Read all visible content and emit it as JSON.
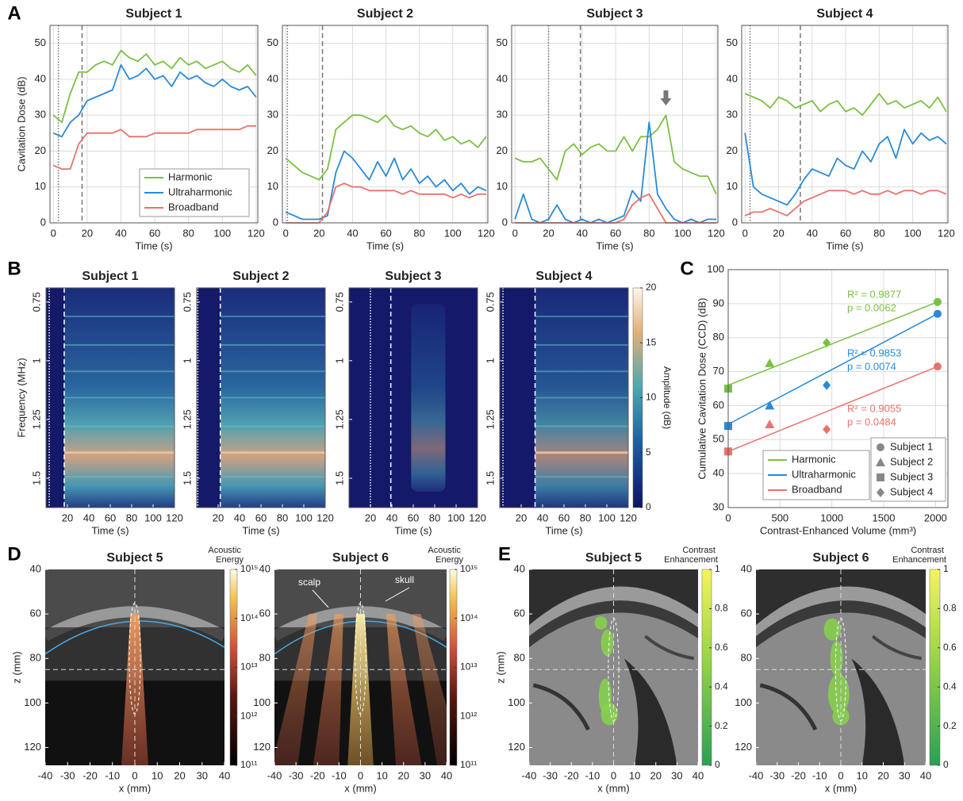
{
  "panel_labels": [
    "A",
    "B",
    "C",
    "D",
    "E"
  ],
  "chart_data": [
    {
      "type": "line",
      "title": "Subject 1",
      "xlabel": "Time (s)",
      "ylabel": "Cavitation Dose (dB)",
      "x": [
        0,
        5,
        10,
        15,
        20,
        25,
        30,
        35,
        40,
        45,
        50,
        55,
        60,
        65,
        70,
        75,
        80,
        85,
        90,
        95,
        100,
        105,
        110,
        115,
        120
      ],
      "xlim": [
        -2,
        121
      ],
      "xticks": [
        0,
        20,
        40,
        60,
        80,
        100,
        120
      ],
      "ylim": [
        0,
        55
      ],
      "yticks": [
        0,
        10,
        20,
        30,
        40,
        50
      ],
      "grid": true,
      "legend": "lower right",
      "vlines": [
        {
          "value": 3,
          "style": "dotted"
        },
        {
          "value": 17,
          "style": "dashed"
        }
      ],
      "series": [
        {
          "name": "Harmonic",
          "color": "#7ac143",
          "values": [
            30,
            28,
            36,
            42,
            42,
            44,
            45,
            44,
            48,
            46,
            45,
            47,
            44,
            45,
            43,
            46,
            44,
            45,
            43,
            44,
            45,
            43,
            42,
            44,
            41
          ]
        },
        {
          "name": "Ultraharmonic",
          "color": "#2a8ad6",
          "values": [
            25,
            24,
            28,
            30,
            34,
            35,
            36,
            37,
            44,
            40,
            41,
            43,
            40,
            41,
            38,
            42,
            40,
            41,
            39,
            38,
            40,
            38,
            37,
            38,
            35
          ]
        },
        {
          "name": "Broadband",
          "color": "#e8736c",
          "values": [
            16,
            15,
            15,
            22,
            25,
            25,
            25,
            25,
            26,
            24,
            24,
            24,
            25,
            25,
            25,
            25,
            25,
            26,
            26,
            26,
            26,
            26,
            26,
            27,
            27
          ]
        }
      ]
    },
    {
      "type": "line",
      "title": "Subject 2",
      "xlabel": "Time (s)",
      "x": [
        0,
        5,
        10,
        15,
        20,
        25,
        30,
        35,
        40,
        45,
        50,
        55,
        60,
        65,
        70,
        75,
        80,
        85,
        90,
        95,
        100,
        105,
        110,
        115,
        120
      ],
      "xlim": [
        -2,
        121
      ],
      "xticks": [
        0,
        20,
        40,
        60,
        80,
        100,
        120
      ],
      "ylim": [
        0,
        55
      ],
      "yticks": [
        0,
        10,
        20,
        30,
        40,
        50
      ],
      "grid": true,
      "vlines": [
        {
          "value": 1,
          "style": "dotted"
        },
        {
          "value": 22,
          "style": "dashed"
        }
      ],
      "series": [
        {
          "color": "#7ac143",
          "values": [
            18,
            16,
            14,
            13,
            12,
            15,
            26,
            28,
            30,
            30,
            29,
            28,
            30,
            27,
            26,
            27,
            25,
            24,
            26,
            23,
            24,
            22,
            23,
            21,
            24
          ]
        },
        {
          "color": "#2a8ad6",
          "values": [
            3,
            2,
            1,
            1,
            1,
            2,
            14,
            20,
            18,
            15,
            12,
            17,
            13,
            18,
            12,
            15,
            11,
            13,
            10,
            12,
            9,
            11,
            8,
            10,
            9
          ]
        },
        {
          "color": "#e8736c",
          "values": [
            0,
            0,
            0,
            0,
            0,
            3,
            10,
            11,
            10,
            10,
            9,
            9,
            9,
            9,
            8,
            9,
            8,
            8,
            8,
            8,
            7,
            8,
            7,
            8,
            8
          ]
        }
      ]
    },
    {
      "type": "line",
      "title": "Subject 3",
      "xlabel": "Time (s)",
      "x": [
        0,
        5,
        10,
        15,
        20,
        25,
        30,
        35,
        40,
        45,
        50,
        55,
        60,
        65,
        70,
        75,
        80,
        85,
        90,
        95,
        100,
        105,
        110,
        115,
        120
      ],
      "xlim": [
        -2,
        121
      ],
      "xticks": [
        0,
        20,
        40,
        60,
        80,
        100,
        120
      ],
      "ylim": [
        0,
        55
      ],
      "yticks": [
        0,
        10,
        20,
        30,
        40,
        50
      ],
      "grid": true,
      "arrow_x": 90,
      "vlines": [
        {
          "value": 20,
          "style": "dotted"
        },
        {
          "value": 39,
          "style": "dashed"
        }
      ],
      "series": [
        {
          "color": "#7ac143",
          "values": [
            18,
            17,
            17,
            18,
            15,
            12,
            20,
            22,
            19,
            21,
            22,
            20,
            20,
            24,
            20,
            24,
            24,
            26,
            30,
            17,
            15,
            14,
            13,
            13,
            8
          ]
        },
        {
          "color": "#2a8ad6",
          "values": [
            1,
            8,
            1,
            0,
            1,
            5,
            1,
            0,
            1,
            0,
            1,
            0,
            1,
            2,
            9,
            6,
            28,
            8,
            4,
            1,
            0,
            1,
            0,
            1,
            1
          ]
        },
        {
          "color": "#e8736c",
          "values": [
            0,
            0,
            0,
            0,
            0,
            0,
            0,
            0,
            0,
            0,
            0,
            0,
            0,
            1,
            5,
            7,
            8,
            4,
            0,
            0,
            0,
            0,
            0,
            0,
            0
          ]
        }
      ]
    },
    {
      "type": "line",
      "title": "Subject 4",
      "xlabel": "Time (s)",
      "x": [
        0,
        5,
        10,
        15,
        20,
        25,
        30,
        35,
        40,
        45,
        50,
        55,
        60,
        65,
        70,
        75,
        80,
        85,
        90,
        95,
        100,
        105,
        110,
        115,
        120
      ],
      "xlim": [
        -2,
        121
      ],
      "xticks": [
        0,
        20,
        40,
        60,
        80,
        100,
        120
      ],
      "ylim": [
        0,
        55
      ],
      "yticks": [
        0,
        10,
        20,
        30,
        40,
        50
      ],
      "grid": true,
      "vlines": [
        {
          "value": 3,
          "style": "dotted"
        },
        {
          "value": 33,
          "style": "dashed"
        }
      ],
      "series": [
        {
          "color": "#7ac143",
          "values": [
            36,
            35,
            34,
            32,
            35,
            34,
            32,
            33,
            34,
            31,
            33,
            34,
            31,
            32,
            30,
            33,
            36,
            33,
            34,
            32,
            33,
            34,
            32,
            35,
            31
          ]
        },
        {
          "color": "#2a8ad6",
          "values": [
            25,
            10,
            8,
            7,
            6,
            5,
            8,
            12,
            15,
            14,
            13,
            18,
            16,
            15,
            20,
            17,
            22,
            24,
            18,
            26,
            22,
            25,
            23,
            24,
            22
          ]
        },
        {
          "color": "#e8736c",
          "values": [
            2,
            3,
            3,
            4,
            3,
            2,
            4,
            6,
            7,
            8,
            9,
            9,
            9,
            8,
            9,
            8,
            8,
            9,
            8,
            9,
            9,
            8,
            9,
            9,
            8
          ]
        }
      ]
    },
    {
      "type": "heatmap",
      "title": "Subject 1",
      "xlabel": "Time (s)",
      "ylabel": "Frequency (MHz)",
      "xlim": [
        0,
        120
      ],
      "xticks": [
        20,
        40,
        60,
        80,
        100,
        120
      ],
      "ylim": [
        0.69,
        1.625
      ],
      "y_reversed": true,
      "yticks": [
        0.75,
        1,
        1.25,
        1.5
      ],
      "vlines": [
        {
          "value": 3,
          "style": "dotted"
        },
        {
          "value": 17,
          "style": "dashed"
        }
      ]
    },
    {
      "type": "heatmap",
      "title": "Subject 2",
      "xlabel": "Time (s)",
      "xlim": [
        0,
        120
      ],
      "xticks": [
        20,
        40,
        60,
        80,
        100,
        120
      ],
      "ylim": [
        0.69,
        1.625
      ],
      "y_reversed": true,
      "yticks": [
        0.75,
        1,
        1.25,
        1.5
      ],
      "vlines": [
        {
          "value": 1,
          "style": "dotted"
        },
        {
          "value": 22,
          "style": "dashed"
        }
      ]
    },
    {
      "type": "heatmap",
      "title": "Subject 3",
      "xlabel": "Time (s)",
      "xlim": [
        0,
        120
      ],
      "xticks": [
        20,
        40,
        60,
        80,
        100,
        120
      ],
      "ylim": [
        0.69,
        1.625
      ],
      "y_reversed": true,
      "yticks": [
        0.75,
        1,
        1.25,
        1.5
      ],
      "vlines": [
        {
          "value": 20,
          "style": "dotted"
        },
        {
          "value": 39,
          "style": "dashed"
        }
      ]
    },
    {
      "type": "heatmap",
      "title": "Subject 4",
      "xlabel": "Time (s)",
      "xlim": [
        0,
        120
      ],
      "xticks": [
        20,
        40,
        60,
        80,
        100,
        120
      ],
      "ylim": [
        0.69,
        1.625
      ],
      "y_reversed": true,
      "yticks": [
        0.75,
        1,
        1.25,
        1.5
      ],
      "vlines": [
        {
          "value": 3,
          "style": "dotted"
        },
        {
          "value": 33,
          "style": "dashed"
        }
      ],
      "colorbar": {
        "label": "Amplitude (dB)",
        "lim": [
          0,
          20
        ],
        "ticks": [
          0,
          5,
          10,
          15,
          20
        ]
      }
    },
    {
      "type": "scatter",
      "xlabel": "Contrast-Enhanced Volume (mm³)",
      "ylabel": "Cumulative Cavitation Dose (CCD) (dB)",
      "x": [
        2020,
        400,
        0,
        950
      ],
      "xlim": [
        0,
        2120
      ],
      "xticks": [
        0,
        500,
        1000,
        1500,
        2000
      ],
      "ylim": [
        30,
        100
      ],
      "yticks": [
        30,
        40,
        50,
        60,
        70,
        80,
        90,
        100
      ],
      "grid": true,
      "legend": "lower left",
      "marker_legend": {
        "labels": [
          "Subject 1",
          "Subject 2",
          "Subject 3",
          "Subject 4"
        ],
        "markers": [
          "circle",
          "triangle",
          "square",
          "diamond"
        ]
      },
      "series": [
        {
          "name": "Harmonic",
          "color": "#7ac143",
          "values": [
            90.5,
            72.5,
            65,
            78.5
          ],
          "fit": {
            "x": [
              0,
              2020
            ],
            "y": [
              66,
              90.5
            ]
          },
          "stats": [
            "R² = 0.9877",
            "p = 0.0062"
          ]
        },
        {
          "name": "Ultraharmonic",
          "color": "#2a8ad6",
          "values": [
            87,
            60,
            54,
            66
          ],
          "fit": {
            "x": [
              0,
              2020
            ],
            "y": [
              54.5,
              87
            ]
          },
          "stats": [
            "R² = 0.9853",
            "p = 0.0074"
          ]
        },
        {
          "name": "Broadband",
          "color": "#e8736c",
          "values": [
            71.5,
            54.5,
            46.5,
            53
          ],
          "fit": {
            "x": [
              0,
              2020
            ],
            "y": [
              46.5,
              71.5
            ]
          },
          "stats": [
            "R² = 0.9055",
            "p = 0.0484"
          ]
        }
      ]
    },
    {
      "type": "image",
      "title": "Subject 5",
      "xlabel": "x (mm)",
      "ylabel": "z (mm)",
      "xlim": [
        -40,
        40
      ],
      "xticks": [
        -40,
        -30,
        -20,
        -10,
        0,
        10,
        20,
        30,
        40
      ],
      "ylim": [
        40,
        128
      ],
      "y_reversed": true,
      "yticks": [
        40,
        60,
        80,
        100,
        120
      ],
      "target": {
        "x": 0,
        "z": 85
      },
      "colorbar": {
        "label": "Acoustic Energy",
        "lim": [
          100000000000,
          1000000000000000
        ],
        "log": true,
        "ticks": [
          {
            "value": 100000000000,
            "label": "10¹¹"
          },
          {
            "value": 1000000000000,
            "label": "10¹²"
          },
          {
            "value": 10000000000000,
            "label": "10¹³"
          },
          {
            "value": 100000000000000,
            "label": "10¹⁴"
          },
          {
            "value": 1000000000000000,
            "label": "10¹⁵"
          }
        ]
      }
    },
    {
      "type": "image",
      "title": "Subject 6",
      "xlabel": "x (mm)",
      "xlim": [
        -40,
        40
      ],
      "xticks": [
        -40,
        -30,
        -20,
        -10,
        0,
        10,
        20,
        30,
        40
      ],
      "ylim": [
        40,
        128
      ],
      "y_reversed": true,
      "yticks": [
        40,
        60,
        80,
        100,
        120
      ],
      "target": {
        "x": 0,
        "z": 85
      },
      "annotations": [
        "scalp",
        "skull"
      ],
      "colorbar": {
        "label": "Acoustic Energy",
        "lim": [
          100000000000,
          1000000000000000
        ],
        "log": true,
        "ticks": [
          {
            "value": 100000000000,
            "label": "10¹¹"
          },
          {
            "value": 1000000000000,
            "label": "10¹²"
          },
          {
            "value": 10000000000000,
            "label": "10¹³"
          },
          {
            "value": 100000000000000,
            "label": "10¹⁴"
          },
          {
            "value": 1000000000000000,
            "label": "10¹⁵"
          }
        ]
      }
    },
    {
      "type": "image",
      "title": "Subject 5",
      "xlabel": "x (mm)",
      "ylabel": "z (mm)",
      "xlim": [
        -40,
        40
      ],
      "xticks": [
        -40,
        -30,
        -20,
        -10,
        0,
        10,
        20,
        30,
        40
      ],
      "ylim": [
        40,
        128
      ],
      "y_reversed": true,
      "yticks": [
        40,
        60,
        80,
        100,
        120
      ],
      "target": {
        "x": 0,
        "z": 85
      },
      "colorbar": {
        "label": "Contrast Enhancement",
        "lim": [
          0,
          1
        ],
        "ticks": [
          0,
          0.2,
          0.4,
          0.6,
          0.8,
          1
        ]
      }
    },
    {
      "type": "image",
      "title": "Subject 6",
      "xlabel": "x (mm)",
      "xlim": [
        -40,
        40
      ],
      "xticks": [
        -40,
        -30,
        -20,
        -10,
        0,
        10,
        20,
        30,
        40
      ],
      "ylim": [
        40,
        128
      ],
      "y_reversed": true,
      "yticks": [
        40,
        60,
        80,
        100,
        120
      ],
      "target": {
        "x": 0,
        "z": 85
      },
      "colorbar": {
        "label": "Contrast Enhancement",
        "lim": [
          0,
          1
        ],
        "ticks": [
          0,
          0.2,
          0.4,
          0.6,
          0.8,
          1
        ]
      }
    }
  ]
}
